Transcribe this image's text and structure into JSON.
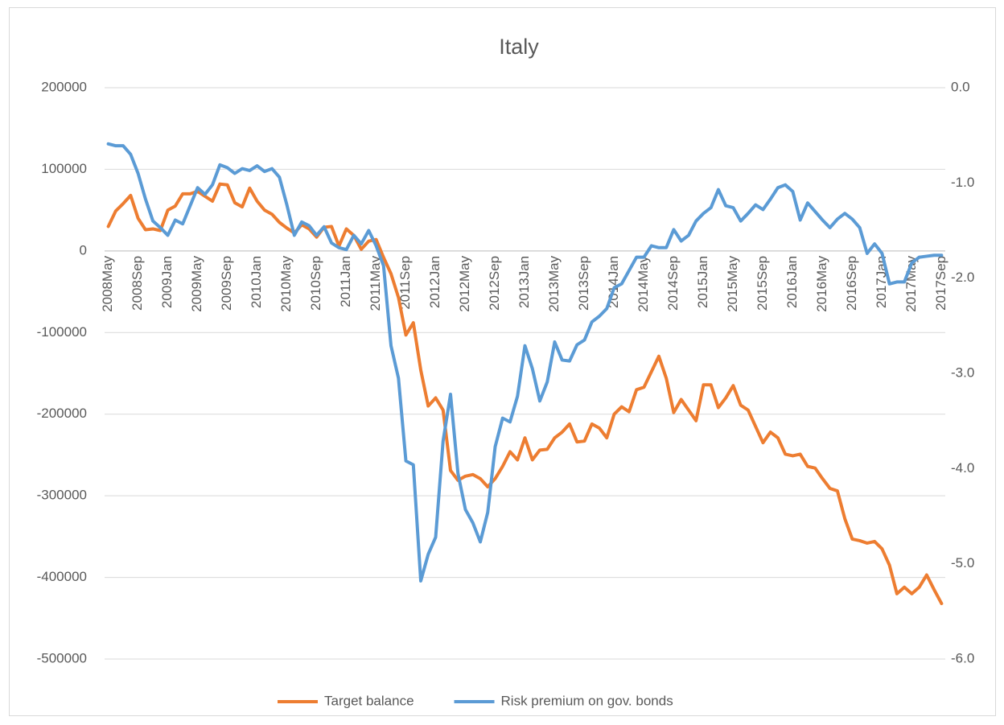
{
  "chart_data": {
    "type": "line",
    "title": "Italy",
    "categories": [
      "2008May",
      null,
      null,
      null,
      "2008Sep",
      null,
      null,
      null,
      "2009Jan",
      null,
      null,
      null,
      "2009May",
      null,
      null,
      null,
      "2009Sep",
      null,
      null,
      null,
      "2010Jan",
      null,
      null,
      null,
      "2010May",
      null,
      null,
      null,
      "2010Sep",
      null,
      null,
      null,
      "2011Jan",
      null,
      null,
      null,
      "2011May",
      null,
      null,
      null,
      "2011Sep",
      null,
      null,
      null,
      "2012Jan",
      null,
      null,
      null,
      "2012May",
      null,
      null,
      null,
      "2012Sep",
      null,
      null,
      null,
      "2013Jan",
      null,
      null,
      null,
      "2013May",
      null,
      null,
      null,
      "2013Sep",
      null,
      null,
      null,
      "2014Jan",
      null,
      null,
      null,
      "2014May",
      null,
      null,
      null,
      "2014Sep",
      null,
      null,
      null,
      "2015Jan",
      null,
      null,
      null,
      "2015May",
      null,
      null,
      null,
      "2015Sep",
      null,
      null,
      null,
      "2016Jan",
      null,
      null,
      null,
      "2016May",
      null,
      null,
      null,
      "2016Sep",
      null,
      null,
      null,
      "2017Jan",
      null,
      null,
      null,
      "2017May",
      null,
      null,
      null,
      "2017Sep"
    ],
    "series": [
      {
        "name": "Target balance",
        "color": "#ED7D31",
        "values": [
          30000,
          49000,
          58000,
          68000,
          40000,
          26000,
          27000,
          25000,
          50000,
          55000,
          70000,
          70000,
          73000,
          67000,
          61000,
          82000,
          81000,
          59000,
          54000,
          77000,
          61000,
          50000,
          45000,
          35000,
          28000,
          22000,
          32000,
          27000,
          17000,
          29000,
          30000,
          6000,
          27000,
          19000,
          2000,
          12000,
          14000,
          -8000,
          -28000,
          -57000,
          -103000,
          -88000,
          -146000,
          -190000,
          -180000,
          -195000,
          -269000,
          -281000,
          -276000,
          -274000,
          -279000,
          -289000,
          -279000,
          -264000,
          -246000,
          -256000,
          -229000,
          -256000,
          -244000,
          -243000,
          -229000,
          -222000,
          -212000,
          -234000,
          -233000,
          -212000,
          -217000,
          -229000,
          -200000,
          -191000,
          -197000,
          -170000,
          -167000,
          -148000,
          -129000,
          -156000,
          -198000,
          -182000,
          -195000,
          -208000,
          -164000,
          -164000,
          -192000,
          -180000,
          -165000,
          -189000,
          -195000,
          -215000,
          -235000,
          -222000,
          -229000,
          -249000,
          -251000,
          -249000,
          -264000,
          -266000,
          -279000,
          -291000,
          -294000,
          -328000,
          -353000,
          -355000,
          -358000,
          -356000,
          -365000,
          -385000,
          -420000,
          -412000,
          -420000,
          -412000,
          -397000,
          -415000,
          -432000
        ]
      },
      {
        "name": "Risk premium on gov. bonds",
        "color": "#5B9BD5",
        "axis": "y2",
        "values": [
          -0.59,
          -0.61,
          -0.61,
          -0.7,
          -0.9,
          -1.17,
          -1.4,
          -1.47,
          -1.55,
          -1.39,
          -1.43,
          -1.24,
          -1.05,
          -1.12,
          -1.02,
          -0.81,
          -0.84,
          -0.9,
          -0.85,
          -0.87,
          -0.82,
          -0.88,
          -0.85,
          -0.94,
          -1.23,
          -1.55,
          -1.41,
          -1.45,
          -1.55,
          -1.46,
          -1.63,
          -1.68,
          -1.7,
          -1.55,
          -1.64,
          -1.5,
          -1.66,
          -1.87,
          -2.71,
          -3.05,
          -3.92,
          -3.96,
          -5.18,
          -4.9,
          -4.72,
          -3.71,
          -3.22,
          -4.05,
          -4.43,
          -4.57,
          -4.77,
          -4.46,
          -3.77,
          -3.47,
          -3.51,
          -3.24,
          -2.71,
          -2.95,
          -3.29,
          -3.09,
          -2.67,
          -2.86,
          -2.87,
          -2.7,
          -2.65,
          -2.46,
          -2.4,
          -2.32,
          -2.1,
          -2.06,
          -1.92,
          -1.78,
          -1.78,
          -1.66,
          -1.68,
          -1.68,
          -1.49,
          -1.61,
          -1.55,
          -1.4,
          -1.32,
          -1.26,
          -1.07,
          -1.24,
          -1.26,
          -1.4,
          -1.32,
          -1.23,
          -1.28,
          -1.17,
          -1.05,
          -1.02,
          -1.09,
          -1.39,
          -1.21,
          -1.3,
          -1.39,
          -1.47,
          -1.38,
          -1.32,
          -1.38,
          -1.47,
          -1.74,
          -1.64,
          -1.74,
          -2.06,
          -2.04,
          -2.04,
          -1.84,
          -1.78,
          -1.77,
          -1.76,
          -1.76
        ]
      }
    ],
    "ylim": [
      -500000,
      200000
    ],
    "yticks": [
      -500000,
      -400000,
      -300000,
      -200000,
      -100000,
      0,
      100000,
      200000
    ],
    "y2lim": [
      -6,
      0
    ],
    "y2ticks": [
      {
        "value": -6,
        "label": "-6.0"
      },
      {
        "value": -5,
        "label": "-5.0"
      },
      {
        "value": -4,
        "label": "-4.0"
      },
      {
        "value": -3,
        "label": "-3.0"
      },
      {
        "value": -2,
        "label": "-2.0"
      },
      {
        "value": -1,
        "label": "-1.0"
      },
      {
        "value": 0,
        "label": "0.0"
      }
    ],
    "grid": true,
    "legend": "bottom"
  }
}
